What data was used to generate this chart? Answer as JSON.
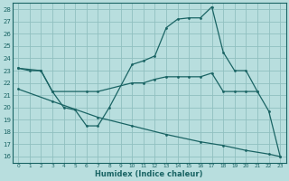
{
  "xlabel": "Humidex (Indice chaleur)",
  "xlim": [
    -0.5,
    23.5
  ],
  "ylim": [
    15.5,
    28.5
  ],
  "yticks": [
    16,
    17,
    18,
    19,
    20,
    21,
    22,
    23,
    24,
    25,
    26,
    27,
    28
  ],
  "xticks": [
    0,
    1,
    2,
    3,
    4,
    5,
    6,
    7,
    8,
    9,
    10,
    11,
    12,
    13,
    14,
    15,
    16,
    17,
    18,
    19,
    20,
    21,
    22,
    23
  ],
  "background_color": "#b8dede",
  "grid_color": "#90c0c0",
  "line_color": "#1a6464",
  "line1_x": [
    0,
    1,
    2,
    3,
    4,
    5,
    6,
    7,
    8,
    10,
    11,
    12,
    13,
    14,
    15,
    16,
    17,
    18,
    19,
    20,
    21,
    22,
    23
  ],
  "line1_y": [
    23.2,
    23.0,
    23.0,
    21.3,
    20.0,
    19.8,
    18.5,
    18.5,
    20.0,
    23.5,
    23.8,
    24.2,
    26.5,
    27.2,
    27.3,
    27.3,
    28.2,
    24.5,
    23.0,
    23.0,
    21.3,
    19.7,
    16.0
  ],
  "line2_x": [
    0,
    2,
    3,
    6,
    7,
    10,
    11,
    12,
    13,
    14,
    15,
    16,
    17,
    18,
    19,
    20,
    21
  ],
  "line2_y": [
    23.2,
    23.0,
    21.3,
    21.3,
    21.3,
    22.0,
    22.0,
    22.3,
    22.5,
    22.5,
    22.5,
    22.5,
    22.8,
    21.3,
    21.3,
    21.3,
    21.3
  ],
  "line3_x": [
    0,
    3,
    7,
    10,
    13,
    16,
    18,
    20,
    22,
    23
  ],
  "line3_y": [
    21.5,
    20.5,
    19.2,
    18.5,
    17.8,
    17.2,
    16.9,
    16.5,
    16.2,
    16.0
  ]
}
